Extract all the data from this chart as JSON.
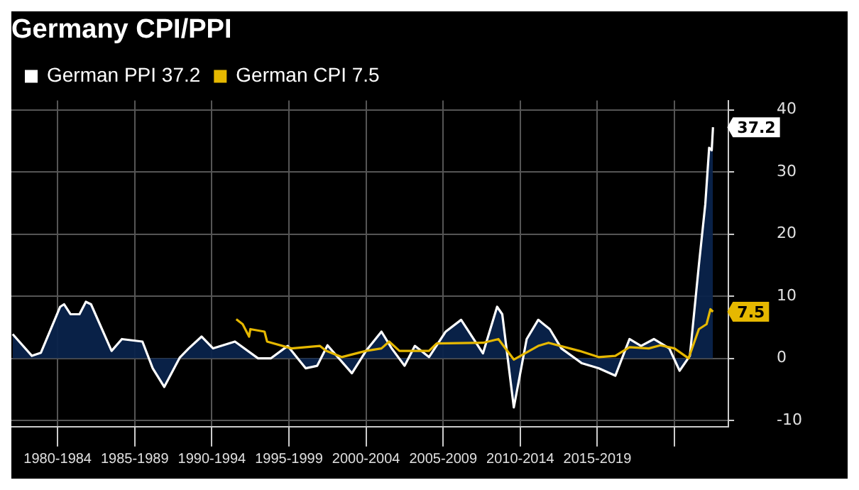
{
  "chart_data": {
    "type": "line",
    "title": "Germany CPI/PPI",
    "series": [
      {
        "name": "German PPI 37.2",
        "type": "area",
        "color": "#ffffff",
        "x": [
          "1977-02",
          "1978-05",
          "1978-12",
          "1980-03",
          "1980-06",
          "1980-11",
          "1981-06",
          "1981-11",
          "1982-03",
          "1983-07",
          "1984-03",
          "1985-07",
          "1986-03",
          "1986-12",
          "1987-12",
          "1988-07",
          "1989-05",
          "1990-02",
          "1991-07",
          "1993-01",
          "1993-11",
          "1994-12",
          "1996-02",
          "1996-11",
          "1997-07",
          "1999-02",
          "2000-01",
          "2001-01",
          "2001-09",
          "2002-07",
          "2003-03",
          "2004-02",
          "2005-03",
          "2006-03",
          "2007-08",
          "2008-07",
          "2008-11",
          "2009-08",
          "2010-06",
          "2011-03",
          "2011-12",
          "2012-09",
          "2014-01",
          "2015-02",
          "2016-03",
          "2017-02",
          "2017-11",
          "2018-09",
          "2019-09",
          "2020-05",
          "2021-01",
          "2021-08",
          "2022-01",
          "2022-04",
          "2022-06",
          "2022-07"
        ],
        "values": [
          3.9,
          0.4,
          0.9,
          8.3,
          8.7,
          7.1,
          7.1,
          9.1,
          8.7,
          1.2,
          3.1,
          2.7,
          -1.6,
          -4.6,
          0.1,
          1.6,
          3.5,
          1.6,
          2.7,
          0.0,
          0.0,
          2.0,
          -1.6,
          -1.2,
          2.1,
          -2.4,
          1.2,
          4.3,
          1.6,
          -1.2,
          2.0,
          0.2,
          4.3,
          6.2,
          0.8,
          8.3,
          7.1,
          -7.9,
          3.1,
          6.2,
          4.7,
          1.6,
          -0.8,
          -1.6,
          -2.8,
          3.1,
          2.0,
          3.1,
          1.6,
          -2.0,
          0.4,
          15.0,
          24.8,
          33.9,
          33.5,
          37.2
        ]
      },
      {
        "name": "German CPI 7.5",
        "type": "line",
        "color": "#e6b800",
        "x": [
          "1991-08",
          "1992-01",
          "1992-06",
          "1992-07",
          "1993-06",
          "1993-08",
          "1995-03",
          "1997-01",
          "1997-06",
          "1998-06",
          "2000-01",
          "2001-01",
          "2001-07",
          "2002-03",
          "2004-02",
          "2004-08",
          "2007-08",
          "2008-08",
          "2009-08",
          "2011-03",
          "2011-11",
          "2013-11",
          "2015-02",
          "2016-03",
          "2017-02",
          "2018-05",
          "2019-02",
          "2020-01",
          "2020-12",
          "2021-08",
          "2022-02",
          "2022-05",
          "2022-07"
        ],
        "values": [
          6.3,
          5.5,
          3.5,
          4.7,
          4.3,
          2.7,
          1.6,
          2.0,
          1.2,
          0.2,
          1.2,
          1.6,
          2.7,
          1.2,
          1.2,
          2.4,
          2.5,
          3.1,
          -0.2,
          2.0,
          2.5,
          1.2,
          0.2,
          0.4,
          1.8,
          1.6,
          2.1,
          1.6,
          0.0,
          4.7,
          5.5,
          7.9,
          7.5
        ]
      }
    ],
    "annotations": [
      {
        "text": "37.2",
        "x": "2022-07",
        "y": 37.2
      },
      {
        "text": "7.5",
        "x": "2022-07",
        "y": 7.5
      }
    ],
    "xlim": [
      "1977-01",
      "2023-07"
    ],
    "xticks": [
      {
        "value": "1980-01",
        "label": "1980-1984"
      },
      {
        "value": "1985-01",
        "label": "1985-1989"
      },
      {
        "value": "1990-01",
        "label": "1990-1994"
      },
      {
        "value": "1995-01",
        "label": "1995-1999"
      },
      {
        "value": "2000-01",
        "label": "2000-2004"
      },
      {
        "value": "2005-01",
        "label": "2005-2009"
      },
      {
        "value": "2010-01",
        "label": "2010-2014"
      },
      {
        "value": "2015-01",
        "label": "2015-2019"
      },
      {
        "value": "2020-01",
        "label": null
      }
    ],
    "ylim": [
      -11,
      41.5
    ],
    "yticks": [
      -10,
      0,
      10,
      20,
      30,
      40
    ],
    "grid": true,
    "legend": "top left",
    "line_style": "solid",
    "marker": "none"
  }
}
